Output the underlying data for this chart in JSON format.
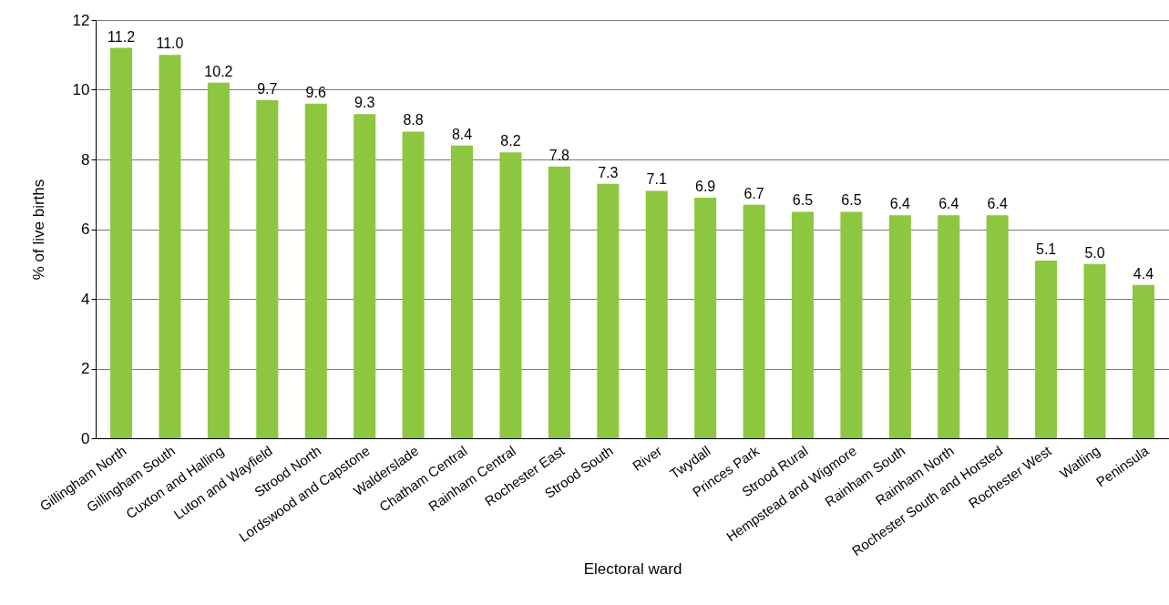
{
  "chart_data": {
    "type": "bar",
    "xlabel": "Electoral ward",
    "ylabel": "% of live births",
    "categories": [
      "Gillingham North",
      "Gillingham South",
      "Cuxton and Halling",
      "Luton and Wayfield",
      "Strood North",
      "Lordswood and Capstone",
      "Walderslade",
      "Chatham Central",
      "Rainham Central",
      "Rochester East",
      "Strood South",
      "River",
      "Twydall",
      "Princes Park",
      "Strood Rural",
      "Hempstead and Wigmore",
      "Rainham South",
      "Rainham North",
      "Rochester South and Horsted",
      "Rochester West",
      "Watling",
      "Peninsula"
    ],
    "values": [
      11.2,
      11.0,
      10.2,
      9.7,
      9.6,
      9.3,
      8.8,
      8.4,
      8.2,
      7.8,
      7.3,
      7.1,
      6.9,
      6.7,
      6.5,
      6.5,
      6.4,
      6.4,
      6.4,
      5.1,
      5.0,
      4.4
    ],
    "value_labels": [
      "11.2",
      "11.0",
      "10.2",
      "9.7",
      "9.6",
      "9.3",
      "8.8",
      "8.4",
      "8.2",
      "7.8",
      "7.3",
      "7.1",
      "6.9",
      "6.7",
      "6.5",
      "6.5",
      "6.4",
      "6.4",
      "6.4",
      "5.1",
      "5.0",
      "4.4"
    ],
    "color": "#8dc63f",
    "ylim": [
      0,
      12
    ],
    "yticks": [
      0,
      2,
      4,
      6,
      8,
      10,
      12
    ],
    "grid": "y"
  }
}
